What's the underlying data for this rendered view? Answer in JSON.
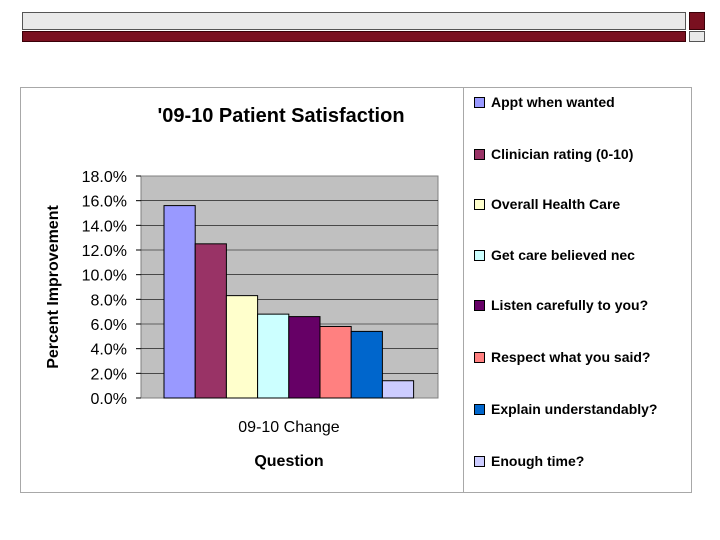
{
  "chart_data": {
    "type": "bar",
    "title": "'09-10 Patient Satisfaction",
    "xlabel": "Question",
    "ylabel": "Percent Improvement",
    "categories": [
      "09-10 Change"
    ],
    "ylim": [
      0,
      18
    ],
    "yticks": [
      "0.0%",
      "2.0%",
      "4.0%",
      "6.0%",
      "8.0%",
      "10.0%",
      "12.0%",
      "14.0%",
      "16.0%",
      "18.0%"
    ],
    "series": [
      {
        "name": "Appt when wanted",
        "values": [
          15.6
        ],
        "color": "#9999ff"
      },
      {
        "name": "Clinician rating (0-10)",
        "values": [
          12.5
        ],
        "color": "#993366"
      },
      {
        "name": "Overall Health Care",
        "values": [
          8.3
        ],
        "color": "#ffffcc"
      },
      {
        "name": "Get care believed nec",
        "values": [
          6.8
        ],
        "color": "#ccffff"
      },
      {
        "name": "Listen carefully to you?",
        "values": [
          6.6
        ],
        "color": "#660066"
      },
      {
        "name": "Respect what you said?",
        "values": [
          5.8
        ],
        "color": "#ff8080"
      },
      {
        "name": "Explain understandably?",
        "values": [
          5.4
        ],
        "color": "#0066cc"
      },
      {
        "name": "Enough time?",
        "values": [
          1.4
        ],
        "color": "#ccccff"
      }
    ],
    "grid": true,
    "legend": "right"
  }
}
